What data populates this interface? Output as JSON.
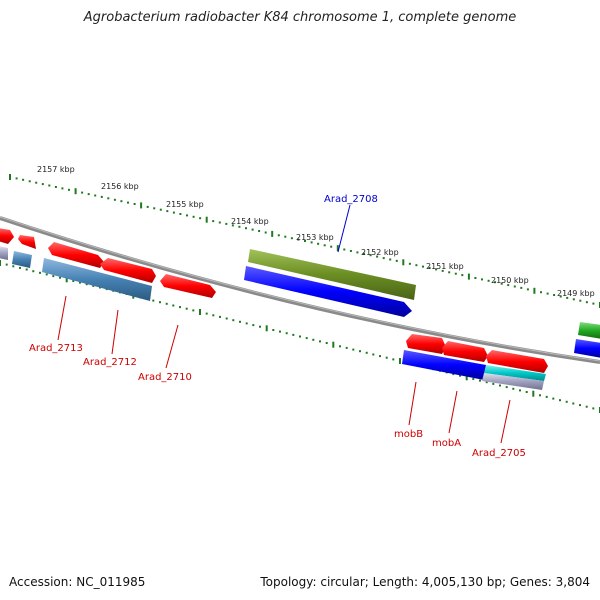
{
  "title": "Agrobacterium radiobacter K84 chromosome 1, complete genome",
  "footer": {
    "accession": "Accession: NC_011985",
    "summary": "Topology: circular; Length: 4,005,130 bp; Genes: 3,804"
  },
  "colors": {
    "backbone": "#8a8a8a",
    "tick": "#1f7a1f",
    "gene_red": "#ff0000",
    "gene_blue": "#0000ff",
    "gene_steel": "#4682b4",
    "gene_olive": "#6b8e23",
    "gene_cyan": "#00c8c8",
    "gene_green": "#22aa22",
    "label_red": "#cc0000",
    "label_blue": "#0000cc"
  },
  "scale_labels": [
    "2157 kbp",
    "2156 kbp",
    "2155 kbp",
    "2154 kbp",
    "2153 kbp",
    "2152 kbp",
    "2151 kbp",
    "2150 kbp",
    "2149 kbp"
  ],
  "gene_labels": [
    {
      "text": "Arad_2708",
      "color": "blue"
    },
    {
      "text": "Arad_2713",
      "color": "red"
    },
    {
      "text": "Arad_2712",
      "color": "red"
    },
    {
      "text": "Arad_2710",
      "color": "red"
    },
    {
      "text": "mobB",
      "color": "red"
    },
    {
      "text": "mobA",
      "color": "red"
    },
    {
      "text": "Arad_2705",
      "color": "red"
    }
  ]
}
